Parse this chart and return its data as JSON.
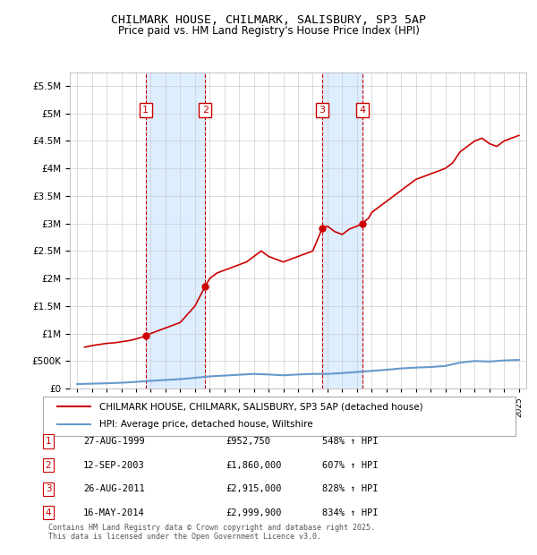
{
  "title": "CHILMARK HOUSE, CHILMARK, SALISBURY, SP3 5AP",
  "subtitle": "Price paid vs. HM Land Registry's House Price Index (HPI)",
  "footer": "Contains HM Land Registry data © Crown copyright and database right 2025.\nThis data is licensed under the Open Government Licence v3.0.",
  "legend_line1": "CHILMARK HOUSE, CHILMARK, SALISBURY, SP3 5AP (detached house)",
  "legend_line2": "HPI: Average price, detached house, Wiltshire",
  "transactions": [
    {
      "num": 1,
      "date": "27-AUG-1999",
      "price": 952750,
      "year": 1999.65,
      "pct": "548% ↑ HPI"
    },
    {
      "num": 2,
      "date": "12-SEP-2003",
      "price": 1860000,
      "year": 2003.7,
      "pct": "607% ↑ HPI"
    },
    {
      "num": 3,
      "date": "26-AUG-2011",
      "price": 2915000,
      "year": 2011.65,
      "pct": "828% ↑ HPI"
    },
    {
      "num": 4,
      "date": "16-MAY-2014",
      "price": 2999900,
      "year": 2014.38,
      "pct": "834% ↑ HPI"
    }
  ],
  "hpi_years": [
    1995,
    1996,
    1997,
    1998,
    1999,
    2000,
    2001,
    2002,
    2003,
    2004,
    2005,
    2006,
    2007,
    2008,
    2009,
    2010,
    2011,
    2012,
    2013,
    2014,
    2015,
    2016,
    2017,
    2018,
    2019,
    2020,
    2021,
    2022,
    2023,
    2024,
    2025
  ],
  "hpi_values": [
    80000,
    88000,
    95000,
    105000,
    120000,
    140000,
    155000,
    170000,
    195000,
    220000,
    235000,
    250000,
    265000,
    255000,
    240000,
    255000,
    265000,
    265000,
    280000,
    300000,
    320000,
    340000,
    365000,
    380000,
    390000,
    410000,
    470000,
    500000,
    490000,
    510000,
    520000
  ],
  "price_years": [
    1995.5,
    1996.0,
    1996.5,
    1997.0,
    1997.5,
    1998.0,
    1998.5,
    1999.0,
    1999.65,
    2000.0,
    2000.5,
    2001.0,
    2001.5,
    2002.0,
    2002.5,
    2003.0,
    2003.7,
    2004.0,
    2004.5,
    2005.0,
    2005.5,
    2006.0,
    2006.5,
    2007.0,
    2007.5,
    2008.0,
    2008.5,
    2009.0,
    2009.5,
    2010.0,
    2010.5,
    2011.0,
    2011.65,
    2012.0,
    2012.5,
    2013.0,
    2013.5,
    2014.0,
    2014.38,
    2014.8,
    2015.0,
    2015.5,
    2016.0,
    2016.5,
    2017.0,
    2017.5,
    2018.0,
    2018.5,
    2019.0,
    2019.5,
    2020.0,
    2020.5,
    2021.0,
    2021.5,
    2022.0,
    2022.5,
    2023.0,
    2023.5,
    2024.0,
    2024.5,
    2025.0
  ],
  "price_values": [
    750000,
    780000,
    800000,
    820000,
    830000,
    850000,
    870000,
    900000,
    952750,
    1000000,
    1050000,
    1100000,
    1150000,
    1200000,
    1350000,
    1500000,
    1860000,
    2000000,
    2100000,
    2150000,
    2200000,
    2250000,
    2300000,
    2400000,
    2500000,
    2400000,
    2350000,
    2300000,
    2350000,
    2400000,
    2450000,
    2500000,
    2915000,
    2950000,
    2850000,
    2800000,
    2900000,
    2950000,
    2999900,
    3100000,
    3200000,
    3300000,
    3400000,
    3500000,
    3600000,
    3700000,
    3800000,
    3850000,
    3900000,
    3950000,
    4000000,
    4100000,
    4300000,
    4400000,
    4500000,
    4550000,
    4450000,
    4400000,
    4500000,
    4550000,
    4600000
  ],
  "xlim": [
    1994.5,
    2025.5
  ],
  "ylim": [
    0,
    5750000
  ],
  "price_color": "#cc0000",
  "hpi_color": "#6699cc",
  "grid_color": "#cccccc",
  "bg_color": "#ffffff",
  "plot_bg_color": "#ffffff",
  "marker_color": "#cc0000",
  "shade_color": "#ddeeff",
  "transaction_label_color": "#cc0000"
}
